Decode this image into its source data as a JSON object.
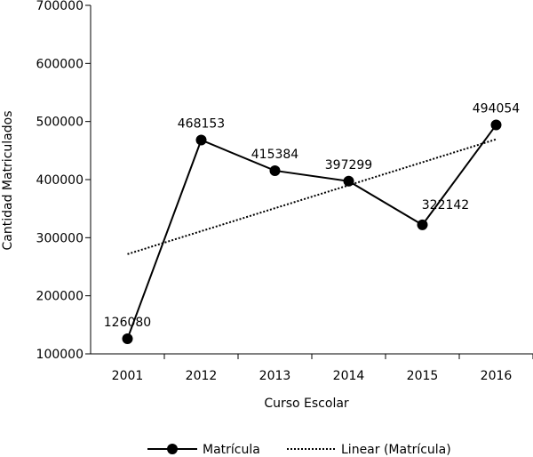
{
  "chart_data": {
    "type": "line",
    "categories": [
      "2001",
      "2012",
      "2013",
      "2014",
      "2015",
      "2016"
    ],
    "series": [
      {
        "name": "Matrícula",
        "values": [
          126080,
          468153,
          415384,
          397299,
          322142,
          494054
        ],
        "color": "#000000"
      }
    ],
    "trendline": {
      "name": "Linear (Matrícula)",
      "type": "linear",
      "style": "dotted",
      "color": "#000000"
    },
    "data_labels": [
      "126080",
      "468153",
      "415384",
      "397299",
      "322142",
      "494054"
    ],
    "xlabel": "Curso Escolar",
    "ylabel": "Cantidad Matriculados",
    "ylim": [
      100000,
      700000
    ],
    "yticks": [
      "100000",
      "200000",
      "300000",
      "400000",
      "500000",
      "600000",
      "700000"
    ],
    "grid": false,
    "legend_position": "bottom"
  }
}
